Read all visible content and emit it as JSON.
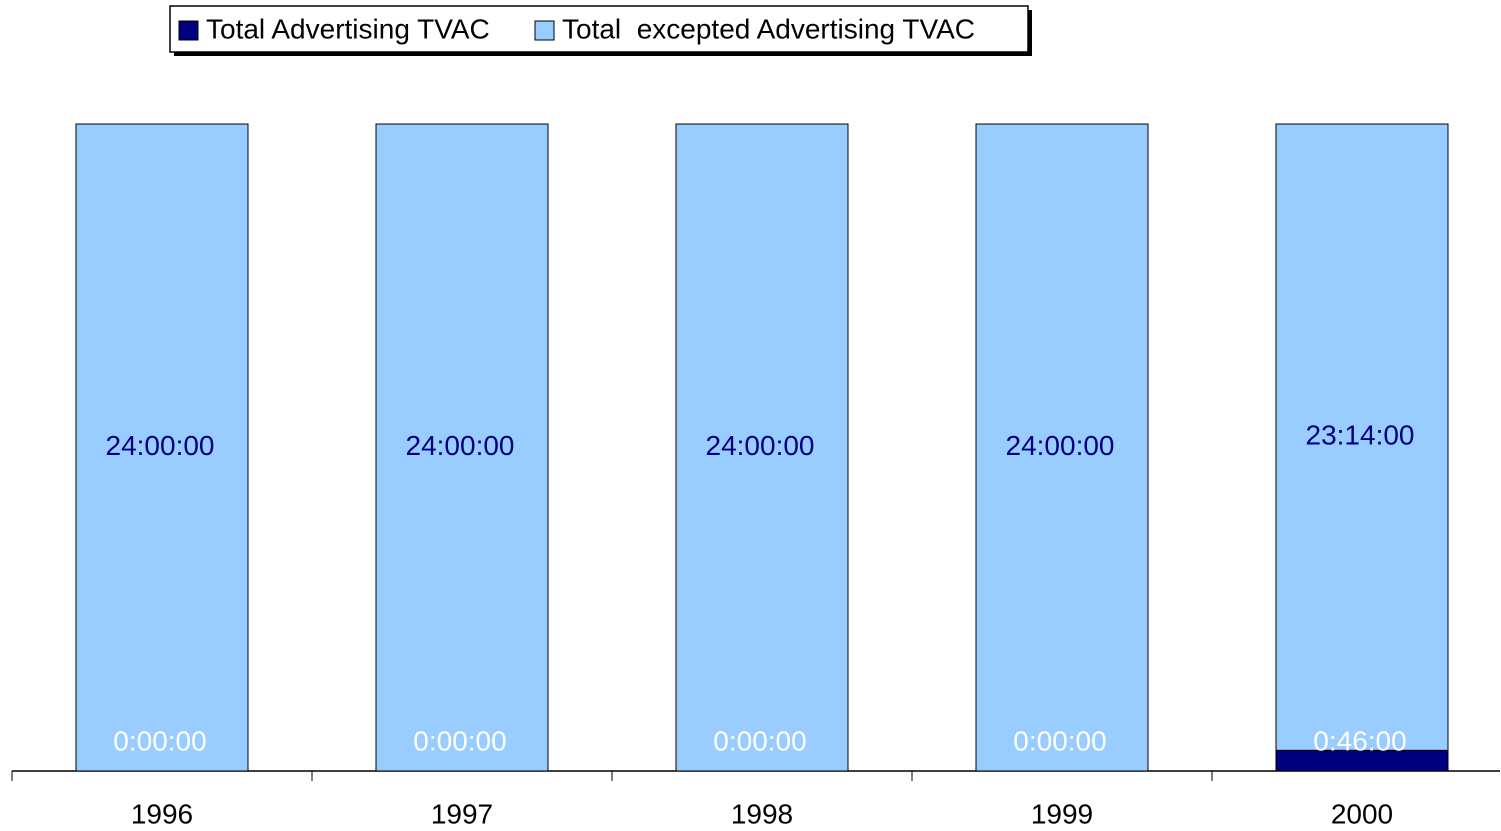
{
  "chart_data": {
    "type": "stacked_bar",
    "categories": [
      "1996",
      "1997",
      "1998",
      "1999",
      "2000"
    ],
    "series": [
      {
        "name": "Total Advertising TVAC",
        "color": "#000080",
        "label_color": "#ffffff",
        "values": [
          0,
          0,
          0,
          0,
          46
        ],
        "value_labels": [
          "0:00:00",
          "0:00:00",
          "0:00:00",
          "0:00:00",
          "0:46:00"
        ]
      },
      {
        "name": "Total  excepted Advertising TVAC",
        "color": "#99ccff",
        "label_color": "#000080",
        "values": [
          1440,
          1440,
          1440,
          1440,
          1394
        ],
        "value_labels": [
          "24:00:00",
          "24:00:00",
          "24:00:00",
          "24:00:00",
          "23:14:00"
        ]
      }
    ],
    "ylim": [
      0,
      1440
    ]
  }
}
